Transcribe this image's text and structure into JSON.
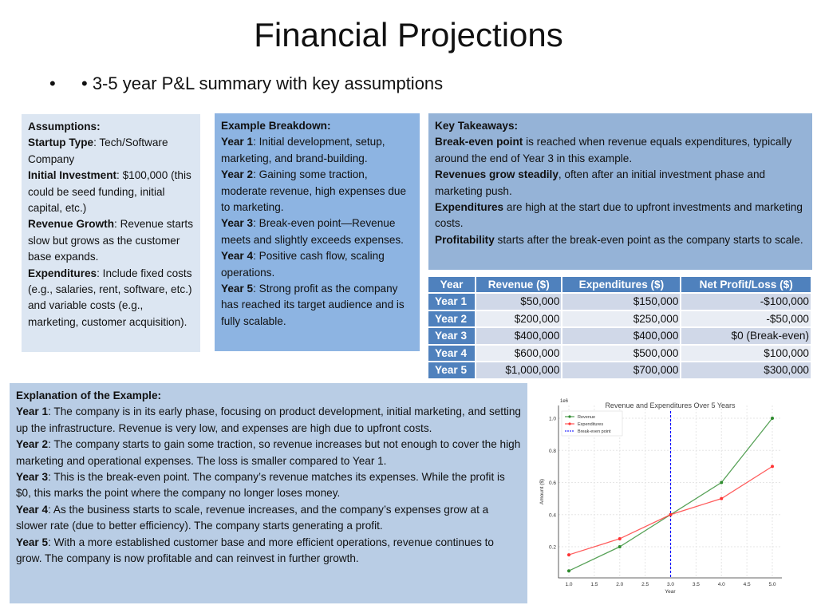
{
  "title": "Financial Projections",
  "bullet_outer": "•",
  "bullet_inner": "• 3-5 year P&L summary with key assumptions",
  "assumptions": {
    "heading": "Assumptions:",
    "items": [
      {
        "label": "Startup Type",
        "text": ": Tech/Software Company"
      },
      {
        "label": "Initial Investment",
        "text": ": $100,000 (this could be seed funding, initial capital, etc.)"
      },
      {
        "label": "Revenue Growth",
        "text": ": Revenue starts slow but grows as the customer base expands."
      },
      {
        "label": "Expenditures",
        "text": ": Include fixed costs (e.g., salaries, rent, software, etc.) and variable costs (e.g., marketing, customer acquisition)."
      }
    ]
  },
  "breakdown": {
    "heading": "Example Breakdown:",
    "items": [
      {
        "label": "Year 1",
        "text": ": Initial development, setup, marketing, and brand-building."
      },
      {
        "label": "Year 2",
        "text": ": Gaining some traction, moderate revenue, high expenses due to marketing."
      },
      {
        "label": "Year 3",
        "text": ": Break-even point—Revenue meets and slightly exceeds expenses."
      },
      {
        "label": "Year 4",
        "text": ": Positive cash flow, scaling operations."
      },
      {
        "label": "Year 5",
        "text": ": Strong profit as the company has reached its target audience and is fully scalable."
      }
    ]
  },
  "takeaways": {
    "heading": "Key Takeaways:",
    "items": [
      {
        "label": "Break-even point",
        "text": " is reached when revenue equals expenditures, typically around the end of Year 3 in this example."
      },
      {
        "label": "Revenues grow steadily",
        "text": ", often after an initial investment phase and marketing push."
      },
      {
        "label": "Expenditures",
        "text": " are high at the start due to upfront investments and marketing costs."
      },
      {
        "label": "Profitability",
        "text": " starts after the break-even point as the company starts to scale."
      }
    ]
  },
  "table": {
    "headers": [
      "Year",
      "Revenue ($)",
      "Expenditures ($)",
      "Net Profit/Loss ($)"
    ],
    "rows": [
      [
        "Year 1",
        "$50,000",
        "$150,000",
        "-$100,000"
      ],
      [
        "Year 2",
        "$200,000",
        "$250,000",
        "-$50,000"
      ],
      [
        "Year 3",
        "$400,000",
        "$400,000",
        "$0 (Break-even)"
      ],
      [
        "Year 4",
        "$600,000",
        "$500,000",
        "$100,000"
      ],
      [
        "Year 5",
        "$1,000,000",
        "$700,000",
        "$300,000"
      ]
    ]
  },
  "explanation": {
    "heading": "Explanation of the Example:",
    "items": [
      {
        "label": "Year 1",
        "text": ": The company is in its early phase, focusing on product development, initial marketing, and setting up the infrastructure. Revenue is very low, and expenses are high due to upfront costs."
      },
      {
        "label": "Year 2",
        "text": ": The company starts to gain some traction, so revenue increases but not enough to cover the high marketing and operational expenses. The loss is smaller compared to Year 1."
      },
      {
        "label": "Year 3",
        "text": ": This is the break-even point. The company’s revenue matches its expenses. While the profit is $0, this marks the point where the company no longer loses money."
      },
      {
        "label": "Year 4",
        "text": ": As the business starts to scale, revenue increases, and the company’s expenses grow at a slower rate (due to better efficiency). The company starts generating a profit."
      },
      {
        "label": "Year 5",
        "text": ": With a more established customer base and more efficient operations, revenue continues to grow. The company is now profitable and can reinvest in further growth."
      }
    ]
  },
  "chart_data": {
    "type": "line",
    "title": "Revenue and Expenditures Over 5 Years",
    "xlabel": "Year",
    "ylabel": "Amount ($)",
    "y_multiplier_label": "1e6",
    "x": [
      1,
      2,
      3,
      4,
      5
    ],
    "series": [
      {
        "name": "Revenue",
        "color": "#2e8b2e",
        "values": [
          0.05,
          0.2,
          0.4,
          0.6,
          1.0
        ]
      },
      {
        "name": "Expenditures",
        "color": "#ff3333",
        "values": [
          0.15,
          0.25,
          0.4,
          0.5,
          0.7
        ]
      }
    ],
    "vline": {
      "name": "Break-even point",
      "x": 3.0,
      "color": "#0000ff"
    },
    "xticks": [
      "1.0",
      "1.5",
      "2.0",
      "2.5",
      "3.0",
      "3.5",
      "4.0",
      "4.5",
      "5.0"
    ],
    "yticks": [
      "0.2",
      "0.4",
      "0.6",
      "0.8",
      "1.0"
    ],
    "xlim": [
      0.8,
      5.2
    ],
    "ylim": [
      0.005,
      1.045
    ],
    "grid": true,
    "legend": "top-left"
  }
}
